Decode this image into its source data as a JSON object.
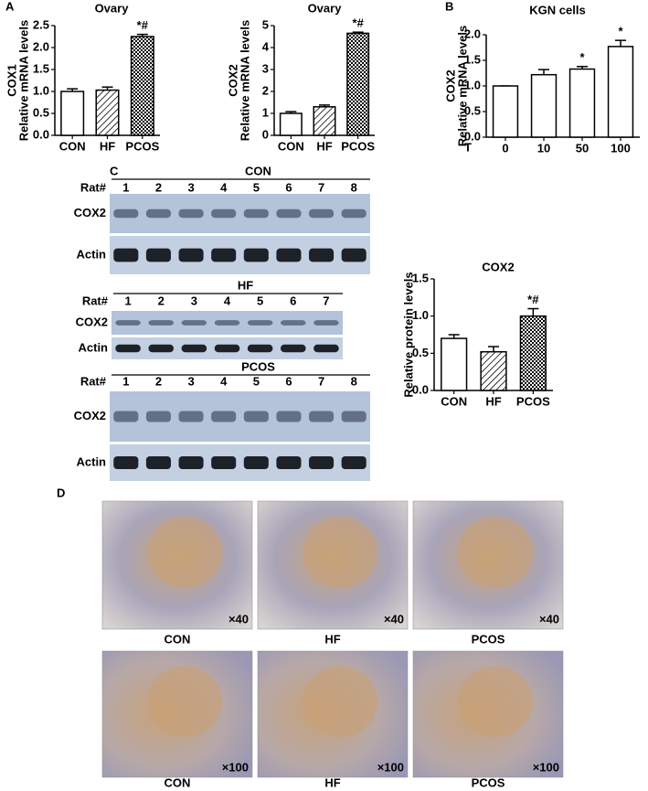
{
  "panels": {
    "a": "A",
    "b": "B",
    "c": "C",
    "d": "D"
  },
  "chart_data": [
    {
      "type": "bar",
      "title": "Ovary",
      "ylabel": [
        "COX1",
        "Relative mRNA levels"
      ],
      "categories": [
        "CON",
        "HF",
        "PCOS"
      ],
      "values": [
        1.0,
        1.03,
        2.25
      ],
      "errors": [
        0.06,
        0.07,
        0.05
      ],
      "annotations": [
        null,
        null,
        "*#"
      ],
      "patterns": [
        "none",
        "hatch",
        "checker"
      ],
      "color": "#000000",
      "ylim": [
        0,
        2.5
      ],
      "yticks": [
        {
          "value": 0,
          "label": "0.0"
        },
        0.5,
        {
          "value": 1,
          "label": "1.0"
        },
        1.5,
        {
          "value": 2,
          "label": "2.0"
        },
        2.5
      ]
    },
    {
      "type": "bar",
      "title": "Ovary",
      "ylabel": [
        "COX2",
        "Relative mRNA levels"
      ],
      "categories": [
        "CON",
        "HF",
        "PCOS"
      ],
      "values": [
        1.0,
        1.3,
        4.65
      ],
      "errors": [
        0.08,
        0.08,
        0.05
      ],
      "annotations": [
        null,
        null,
        "*#"
      ],
      "patterns": [
        "none",
        "hatch",
        "checker"
      ],
      "color": "#000000",
      "ylim": [
        0,
        5
      ],
      "yticks": [
        0,
        1,
        2,
        3,
        4,
        5
      ]
    },
    {
      "type": "bar",
      "title": "KGN cells",
      "ylabel": [
        "COX2",
        "Relative mRNA levels"
      ],
      "xlabel": "T",
      "categories": [
        "0",
        "10",
        "50",
        "100"
      ],
      "values": [
        1.0,
        1.22,
        1.33,
        1.77
      ],
      "errors": [
        0,
        0.1,
        0.05,
        0.12
      ],
      "annotations": [
        null,
        null,
        "*",
        "*"
      ],
      "patterns": [
        "none",
        "none",
        "none",
        "none"
      ],
      "color": "#000000",
      "ylim": [
        0,
        2
      ],
      "yticks": [
        {
          "value": 0,
          "label": "0.0"
        },
        0.5,
        {
          "value": 1,
          "label": "1.0"
        },
        1.5,
        {
          "value": 2,
          "label": "2.0"
        }
      ]
    },
    {
      "type": "bar",
      "title": "COX2",
      "ylabel": [
        "Relative protein levels"
      ],
      "categories": [
        "CON",
        "HF",
        "PCOS"
      ],
      "values": [
        0.7,
        0.52,
        1.0
      ],
      "errors": [
        0.05,
        0.07,
        0.1
      ],
      "annotations": [
        null,
        null,
        "*#"
      ],
      "patterns": [
        "none",
        "hatch",
        "checker"
      ],
      "color": "#000000",
      "ylim": [
        0,
        1.5
      ],
      "yticks": [
        {
          "value": 0,
          "label": "0.0"
        },
        0.5,
        {
          "value": 1,
          "label": "1.0"
        },
        1.5
      ]
    }
  ],
  "blots": [
    {
      "title": "CON",
      "header": "Rat#",
      "lanes": [
        "1",
        "2",
        "3",
        "4",
        "5",
        "6",
        "7",
        "8"
      ],
      "rows": [
        "COX2",
        "Actin"
      ]
    },
    {
      "title": "HF",
      "header": "Rat#",
      "lanes": [
        "1",
        "2",
        "3",
        "4",
        "5",
        "6",
        "7"
      ],
      "rows": [
        "COX2",
        "Actin"
      ]
    },
    {
      "title": "PCOS",
      "header": "Rat#",
      "lanes": [
        "1",
        "2",
        "3",
        "4",
        "5",
        "6",
        "7",
        "8"
      ],
      "rows": [
        "COX2",
        "Actin"
      ]
    }
  ],
  "histology": [
    {
      "label": "CON",
      "magnification": "×40"
    },
    {
      "label": "HF",
      "magnification": "×40"
    },
    {
      "label": "PCOS",
      "magnification": "×40"
    },
    {
      "label": "CON",
      "magnification": "×100"
    },
    {
      "label": "HF",
      "magnification": "×100"
    },
    {
      "label": "PCOS",
      "magnification": "×100"
    }
  ]
}
